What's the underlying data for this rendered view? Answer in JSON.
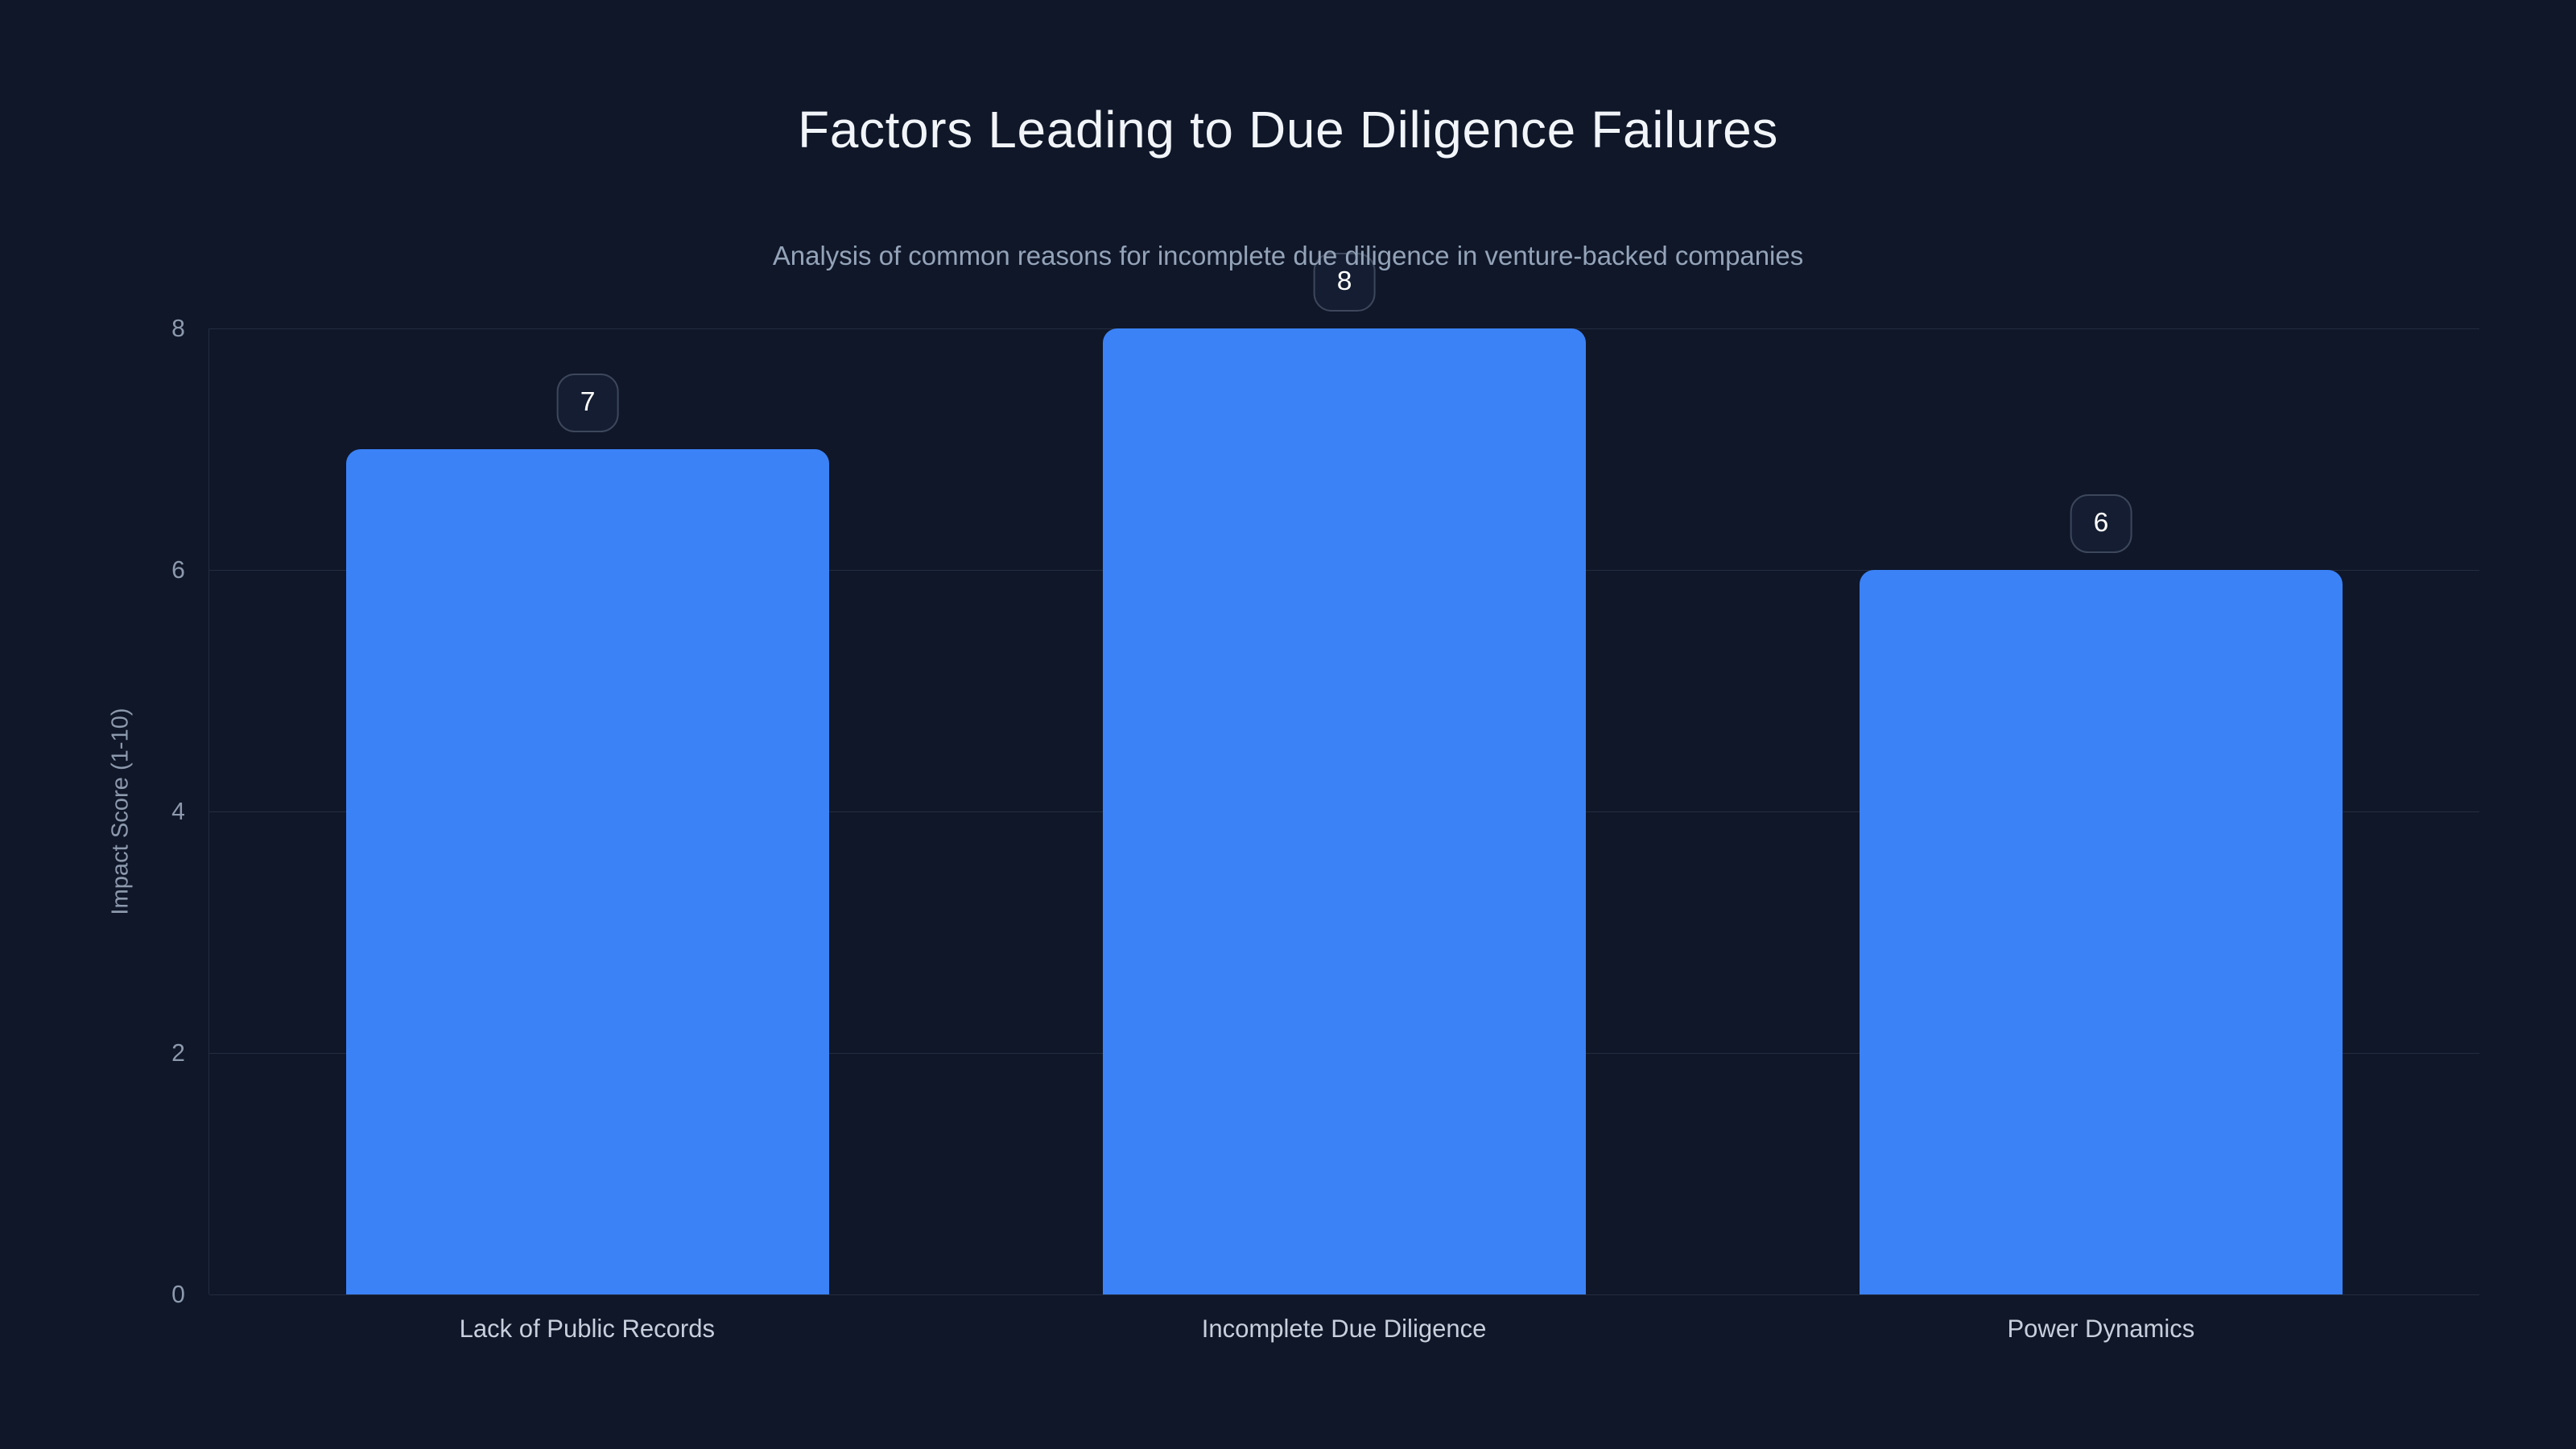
{
  "chart_data": {
    "type": "bar",
    "title": "Factors Leading to Due Diligence Failures",
    "subtitle": "Analysis of common reasons for incomplete due diligence in venture-backed companies",
    "categories": [
      "Lack of Public Records",
      "Incomplete Due Diligence",
      "Power Dynamics"
    ],
    "values": [
      7,
      8,
      6
    ],
    "xlabel": "",
    "ylabel": "Impact Score (1-10)",
    "yticks": [
      8,
      6,
      4,
      2,
      0
    ],
    "ylim": [
      0,
      8
    ],
    "grid": true,
    "legend_position": "none",
    "value_labels": "badges above bars",
    "colors": {
      "background": "#0f1729",
      "bar_fill": "#3b82f6",
      "title_text": "#f1f5f9",
      "subtitle_text": "#94a3b8",
      "tick_text": "#8d99ad",
      "category_text": "#c7cfdc",
      "gridline": "rgba(148,163,184,0.16)",
      "badge_border": "#3d475c",
      "badge_background": "#141d31",
      "badge_text": "#ffffff"
    }
  }
}
